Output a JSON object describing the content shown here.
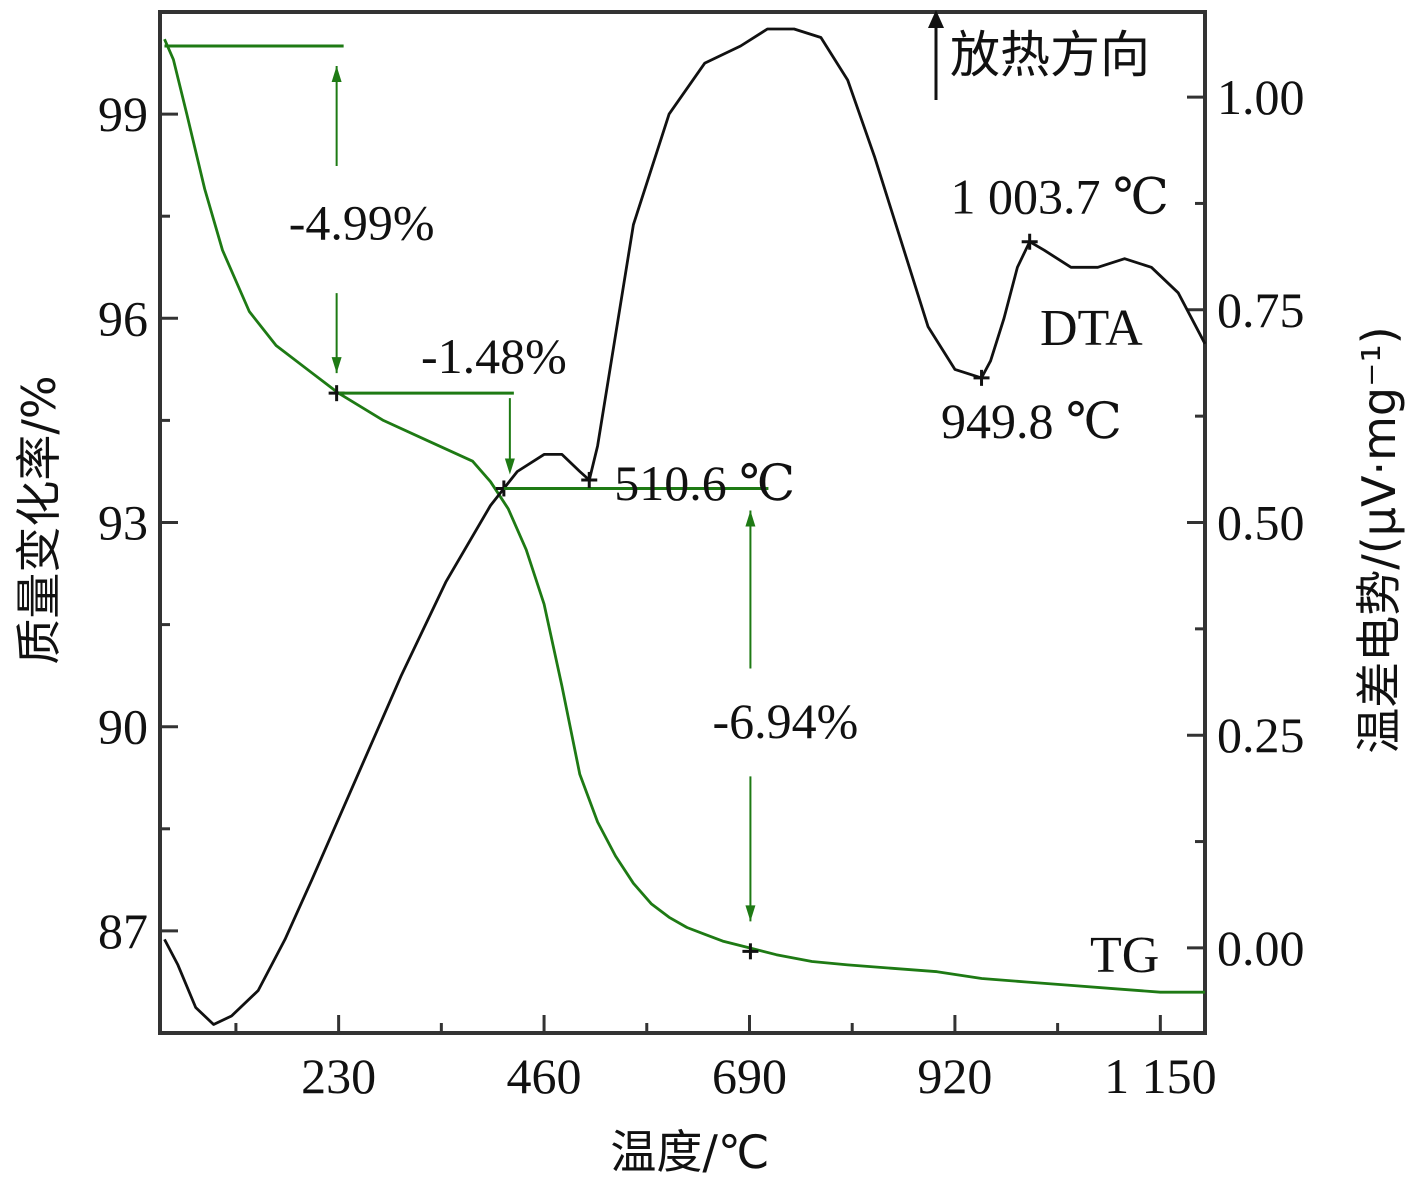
{
  "chart_data": {
    "type": "line",
    "xlabel": "温度/℃",
    "ylabel_left": "质量变化率/%",
    "ylabel_right": "温差电势/(μV·mg⁻¹)",
    "exo_note": "放热方向",
    "xlim": [
      30,
      1200
    ],
    "ylim_left": [
      85.5,
      100.5
    ],
    "ylim_right": [
      -0.1,
      1.1
    ],
    "x_ticks": [
      230,
      460,
      690,
      920,
      1150
    ],
    "x_tick_labels": [
      "230",
      "460",
      "690",
      "920",
      "1 150"
    ],
    "y_left_ticks": [
      87,
      90,
      93,
      96,
      99
    ],
    "y_left_tick_labels": [
      "87",
      "90",
      "93",
      "96",
      "99"
    ],
    "y_right_ticks": [
      0,
      0.25,
      0.5,
      0.75,
      1.0
    ],
    "y_right_tick_labels": [
      "0.00",
      "0.25",
      "0.50",
      "0.75",
      "1.00"
    ],
    "colors": {
      "TG": "#1e7a14",
      "DTA": "#111111",
      "axes": "#333333"
    },
    "series": [
      {
        "name": "TG",
        "axis": "left",
        "x": [
          35,
          45,
          60,
          80,
          100,
          130,
          160,
          200,
          230,
          280,
          330,
          380,
          400,
          420,
          440,
          460,
          480,
          500,
          520,
          540,
          560,
          580,
          600,
          620,
          640,
          660,
          690,
          720,
          760,
          800,
          850,
          900,
          950,
          1000,
          1050,
          1100,
          1150,
          1200
        ],
        "y": [
          100.1,
          99.8,
          99.0,
          97.9,
          97.0,
          96.1,
          95.6,
          95.2,
          94.9,
          94.5,
          94.2,
          93.9,
          93.6,
          93.2,
          92.6,
          91.8,
          90.6,
          89.3,
          88.6,
          88.1,
          87.7,
          87.4,
          87.2,
          87.05,
          86.95,
          86.85,
          86.75,
          86.65,
          86.55,
          86.5,
          86.45,
          86.4,
          86.3,
          86.25,
          86.2,
          86.15,
          86.1,
          86.1
        ]
      },
      {
        "name": "DTA",
        "axis": "right",
        "x": [
          35,
          50,
          70,
          90,
          110,
          140,
          170,
          200,
          250,
          300,
          350,
          400,
          430,
          460,
          480,
          500,
          510.6,
          520,
          540,
          560,
          600,
          640,
          680,
          710,
          740,
          770,
          800,
          830,
          860,
          890,
          920,
          949.8,
          960,
          975,
          990,
          1003.7,
          1020,
          1050,
          1080,
          1110,
          1140,
          1170,
          1200
        ],
        "y": [
          0.01,
          -0.02,
          -0.07,
          -0.09,
          -0.08,
          -0.05,
          0.01,
          0.08,
          0.2,
          0.32,
          0.43,
          0.52,
          0.56,
          0.58,
          0.58,
          0.56,
          0.55,
          0.59,
          0.72,
          0.85,
          0.98,
          1.04,
          1.06,
          1.08,
          1.08,
          1.07,
          1.02,
          0.93,
          0.83,
          0.73,
          0.68,
          0.67,
          0.69,
          0.74,
          0.8,
          0.83,
          0.82,
          0.8,
          0.8,
          0.81,
          0.8,
          0.77,
          0.71
        ]
      }
    ],
    "annotations": {
      "tg_steps": [
        {
          "label": "-4.99%",
          "x_start": 35,
          "x_end": 230,
          "from": 100.0,
          "to": 94.9
        },
        {
          "label": "-1.48%",
          "x_start": 230,
          "x_end": 415,
          "from": 94.9,
          "to": 93.5
        },
        {
          "label": "-6.94%",
          "x_start": 415,
          "x_end": 700,
          "from": 93.5,
          "to": 86.7
        }
      ],
      "dta_peaks": [
        {
          "label": "510.6 ℃",
          "x": 510.6,
          "y": 0.55
        },
        {
          "label": "949.8 ℃",
          "x": 949.8,
          "y": 0.67
        },
        {
          "label": "1 003.7 ℃",
          "x": 1003.7,
          "y": 0.83
        }
      ]
    }
  }
}
